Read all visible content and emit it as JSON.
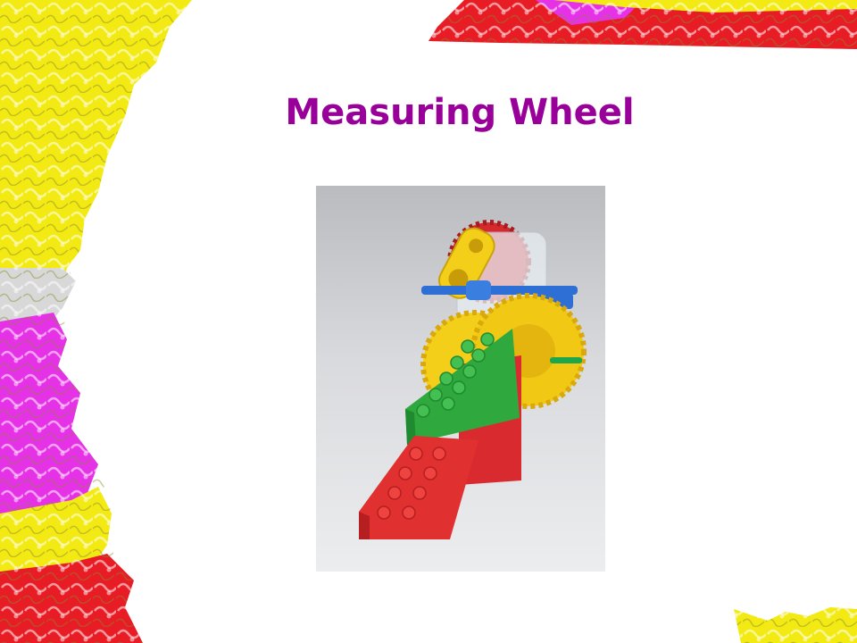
{
  "slide": {
    "title": "Measuring Wheel"
  },
  "theme": {
    "title_color": "#990099",
    "accent_yellow": "#f2ea12",
    "accent_magenta": "#e632e6",
    "accent_red": "#e81c24"
  },
  "photo": {
    "subject": "lego-duplo-measuring-wheel"
  }
}
